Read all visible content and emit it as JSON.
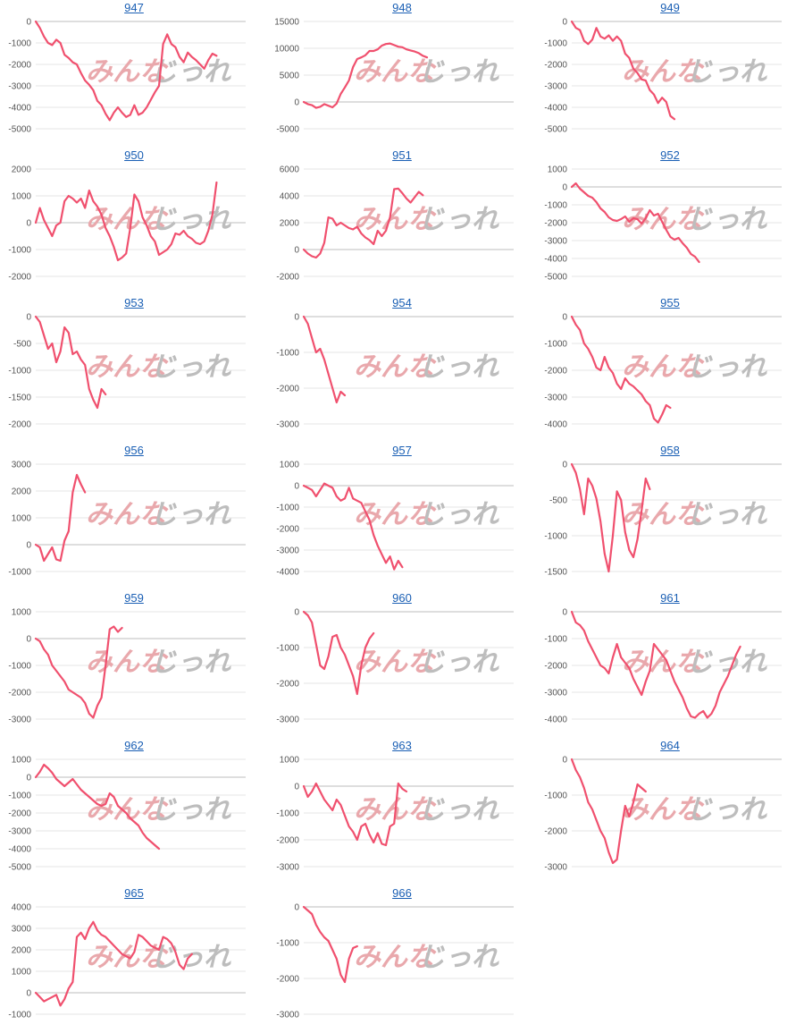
{
  "colors": {
    "line": "#f0506e",
    "grid": "#e6e6e6",
    "zero": "#bdbdbd",
    "title": "#1a5fb4"
  },
  "watermark": {
    "red": "みんな",
    "gray": "じっれ"
  },
  "chart_data": [
    {
      "title": "947",
      "type": "line",
      "ylim": [
        -5000,
        0
      ],
      "yticks": [
        0,
        -1000,
        -2000,
        -3000,
        -4000,
        -5000
      ],
      "values": [
        0,
        -300,
        -700,
        -1000,
        -1100,
        -850,
        -1000,
        -1550,
        -1700,
        -1900,
        -2000,
        -2400,
        -2750,
        -2950,
        -3200,
        -3700,
        -3900,
        -4300,
        -4600,
        -4250,
        -4000,
        -4250,
        -4450,
        -4350,
        -3900,
        -4350,
        -4250,
        -4000,
        -3650,
        -3300,
        -3000,
        -1050,
        -600,
        -1050,
        -1200,
        -1650,
        -1900,
        -1450,
        -1650,
        -1800,
        -2000,
        -2200,
        -1800,
        -1500,
        -1600
      ]
    },
    {
      "title": "948",
      "type": "line",
      "ylim": [
        -5000,
        15000
      ],
      "yticks": [
        15000,
        10000,
        5000,
        0,
        -5000
      ],
      "values": [
        0,
        -400,
        -600,
        -1100,
        -900,
        -400,
        -700,
        -1000,
        -300,
        1500,
        2700,
        4000,
        6500,
        8000,
        8300,
        8700,
        9500,
        9500,
        9800,
        10500,
        10800,
        10900,
        10600,
        10300,
        10200,
        9800,
        9600,
        9400,
        9100,
        8600,
        8300
      ]
    },
    {
      "title": "949",
      "type": "line",
      "ylim": [
        -5000,
        0
      ],
      "yticks": [
        0,
        -1000,
        -2000,
        -3000,
        -4000,
        -5000
      ],
      "values": [
        0,
        -300,
        -400,
        -900,
        -1050,
        -850,
        -300,
        -700,
        -800,
        -650,
        -900,
        -700,
        -900,
        -1500,
        -1700,
        -2200,
        -2400,
        -2700,
        -2750,
        -3200,
        -3400,
        -3800,
        -3550,
        -3750,
        -4400,
        -4550
      ]
    },
    {
      "title": "950",
      "type": "line",
      "ylim": [
        -2000,
        2000
      ],
      "yticks": [
        2000,
        1000,
        0,
        -1000,
        -2000
      ],
      "values": [
        0,
        550,
        100,
        -200,
        -500,
        -100,
        0,
        800,
        1000,
        900,
        750,
        900,
        550,
        1200,
        800,
        600,
        300,
        -200,
        -500,
        -900,
        -1400,
        -1300,
        -1150,
        -200,
        1050,
        800,
        200,
        -100,
        -500,
        -700,
        -1200,
        -1100,
        -1000,
        -800,
        -400,
        -450,
        -300,
        -500,
        -600,
        -750,
        -800,
        -700,
        -300,
        300,
        1500
      ]
    },
    {
      "title": "951",
      "type": "line",
      "ylim": [
        -2000,
        6000
      ],
      "yticks": [
        6000,
        4000,
        2000,
        0,
        -2000
      ],
      "values": [
        0,
        -300,
        -500,
        -600,
        -300,
        500,
        2400,
        2300,
        1800,
        2000,
        1800,
        1600,
        1500,
        1700,
        1200,
        900,
        700,
        400,
        1400,
        1000,
        1400,
        2400,
        4500,
        4550,
        4200,
        3800,
        3500,
        3900,
        4300,
        4050
      ]
    },
    {
      "title": "952",
      "type": "line",
      "ylim": [
        -5000,
        1000
      ],
      "yticks": [
        1000,
        0,
        -1000,
        -2000,
        -3000,
        -4000,
        -5000
      ],
      "values": [
        0,
        200,
        -100,
        -300,
        -500,
        -600,
        -850,
        -1200,
        -1400,
        -1700,
        -1850,
        -1900,
        -1800,
        -1650,
        -1950,
        -1750,
        -1800,
        -2050,
        -1750,
        -1300,
        -1600,
        -1500,
        -1950,
        -2400,
        -2800,
        -2950,
        -2850,
        -3150,
        -3400,
        -3750,
        -3900,
        -4200
      ]
    },
    {
      "title": "953",
      "type": "line",
      "ylim": [
        -2000,
        0
      ],
      "yticks": [
        0,
        -500,
        -1000,
        -1500,
        -2000
      ],
      "values": [
        0,
        -100,
        -350,
        -600,
        -500,
        -850,
        -650,
        -200,
        -300,
        -700,
        -650,
        -800,
        -900,
        -1350,
        -1550,
        -1700,
        -1350,
        -1450
      ]
    },
    {
      "title": "954",
      "type": "line",
      "ylim": [
        -3000,
        0
      ],
      "yticks": [
        0,
        -1000,
        -2000,
        -3000
      ],
      "values": [
        0,
        -200,
        -600,
        -1000,
        -900,
        -1200,
        -1600,
        -2000,
        -2400,
        -2100,
        -2200
      ]
    },
    {
      "title": "955",
      "type": "line",
      "ylim": [
        -4000,
        0
      ],
      "yticks": [
        0,
        -1000,
        -2000,
        -3000,
        -4000
      ],
      "values": [
        0,
        -300,
        -500,
        -1000,
        -1200,
        -1500,
        -1900,
        -2000,
        -1500,
        -1900,
        -2100,
        -2500,
        -2700,
        -2300,
        -2500,
        -2600,
        -2750,
        -2900,
        -3150,
        -3300,
        -3800,
        -3950,
        -3650,
        -3300,
        -3400
      ]
    },
    {
      "title": "956",
      "type": "line",
      "ylim": [
        -1000,
        3000
      ],
      "yticks": [
        3000,
        2000,
        1000,
        0,
        -1000
      ],
      "values": [
        0,
        -100,
        -600,
        -350,
        -100,
        -550,
        -600,
        150,
        500,
        1950,
        2600,
        2250,
        1950
      ]
    },
    {
      "title": "957",
      "type": "line",
      "ylim": [
        -4000,
        1000
      ],
      "yticks": [
        1000,
        0,
        -1000,
        -2000,
        -3000,
        -4000
      ],
      "values": [
        0,
        -100,
        -200,
        -500,
        -200,
        100,
        0,
        -100,
        -500,
        -700,
        -600,
        -100,
        -600,
        -700,
        -800,
        -1200,
        -1600,
        -2300,
        -2800,
        -3200,
        -3600,
        -3300,
        -3900,
        -3500,
        -3800
      ]
    },
    {
      "title": "958",
      "type": "line",
      "ylim": [
        -1500,
        0
      ],
      "yticks": [
        0,
        -500,
        -1000,
        -1500
      ],
      "values": [
        0,
        -120,
        -350,
        -700,
        -200,
        -300,
        -480,
        -800,
        -1250,
        -1500,
        -1000,
        -380,
        -500,
        -950,
        -1200,
        -1300,
        -1050,
        -650,
        -200,
        -350
      ]
    },
    {
      "title": "959",
      "type": "line",
      "ylim": [
        -3000,
        1000
      ],
      "yticks": [
        1000,
        0,
        -1000,
        -2000,
        -3000
      ],
      "values": [
        0,
        -100,
        -400,
        -600,
        -1000,
        -1200,
        -1400,
        -1600,
        -1900,
        -2000,
        -2100,
        -2200,
        -2400,
        -2800,
        -2950,
        -2500,
        -2200,
        -1000,
        350,
        450,
        250,
        400
      ]
    },
    {
      "title": "960",
      "type": "line",
      "ylim": [
        -3000,
        0
      ],
      "yticks": [
        0,
        -1000,
        -2000,
        -3000
      ],
      "values": [
        0,
        -100,
        -300,
        -900,
        -1500,
        -1600,
        -1250,
        -700,
        -650,
        -1000,
        -1200,
        -1500,
        -1800,
        -2300,
        -1500,
        -1000,
        -750,
        -600
      ]
    },
    {
      "title": "961",
      "type": "line",
      "ylim": [
        -4000,
        0
      ],
      "yticks": [
        0,
        -1000,
        -2000,
        -3000,
        -4000
      ],
      "values": [
        0,
        -400,
        -500,
        -700,
        -1100,
        -1400,
        -1700,
        -2000,
        -2100,
        -2300,
        -1700,
        -1200,
        -1700,
        -1900,
        -2100,
        -2500,
        -2800,
        -3100,
        -2600,
        -2200,
        -1200,
        -1400,
        -1600,
        -1800,
        -2200,
        -2600,
        -2900,
        -3200,
        -3600,
        -3900,
        -3950,
        -3800,
        -3700,
        -3950,
        -3800,
        -3500,
        -3000,
        -2700,
        -2400,
        -2000,
        -1600,
        -1300
      ]
    },
    {
      "title": "962",
      "type": "line",
      "ylim": [
        -5000,
        1000
      ],
      "yticks": [
        1000,
        0,
        -1000,
        -2000,
        -3000,
        -4000,
        -5000
      ],
      "values": [
        0,
        300,
        700,
        500,
        250,
        -100,
        -300,
        -500,
        -300,
        -100,
        -400,
        -700,
        -900,
        -1100,
        -1300,
        -1500,
        -1600,
        -1500,
        -900,
        -1100,
        -1600,
        -1800,
        -2000,
        -2300,
        -2500,
        -2700,
        -3100,
        -3400,
        -3600,
        -3800,
        -4000
      ]
    },
    {
      "title": "963",
      "type": "line",
      "ylim": [
        -3000,
        1000
      ],
      "yticks": [
        1000,
        0,
        -1000,
        -2000,
        -3000
      ],
      "values": [
        0,
        -400,
        -200,
        100,
        -200,
        -500,
        -700,
        -900,
        -500,
        -700,
        -1100,
        -1500,
        -1700,
        -2000,
        -1500,
        -1400,
        -1800,
        -2100,
        -1750,
        -2150,
        -2200,
        -1500,
        -1400,
        100,
        -100,
        -200
      ]
    },
    {
      "title": "964",
      "type": "line",
      "ylim": [
        -3000,
        0
      ],
      "yticks": [
        0,
        -1000,
        -2000,
        -3000
      ],
      "values": [
        0,
        -300,
        -500,
        -800,
        -1200,
        -1400,
        -1700,
        -2000,
        -2200,
        -2600,
        -2900,
        -2800,
        -2000,
        -1300,
        -1600,
        -1200,
        -700,
        -800,
        -900
      ]
    },
    {
      "title": "965",
      "type": "line",
      "ylim": [
        -1000,
        4000
      ],
      "yticks": [
        4000,
        3000,
        2000,
        1000,
        0,
        -1000
      ],
      "values": [
        0,
        -200,
        -400,
        -300,
        -200,
        -100,
        -600,
        -300,
        200,
        500,
        2600,
        2800,
        2500,
        3000,
        3300,
        2900,
        2700,
        2600,
        2400,
        2200,
        2000,
        1800,
        1700,
        1600,
        1900,
        2700,
        2600,
        2400,
        2200,
        2100,
        2000,
        2600,
        2500,
        2300,
        1900,
        1300,
        1100,
        1600,
        1800
      ]
    },
    {
      "title": "966",
      "type": "line",
      "ylim": [
        -3000,
        0
      ],
      "yticks": [
        0,
        -1000,
        -2000,
        -3000
      ],
      "values": [
        0,
        -100,
        -200,
        -500,
        -700,
        -850,
        -950,
        -1200,
        -1450,
        -1900,
        -2100,
        -1450,
        -1150,
        -1100
      ]
    }
  ]
}
